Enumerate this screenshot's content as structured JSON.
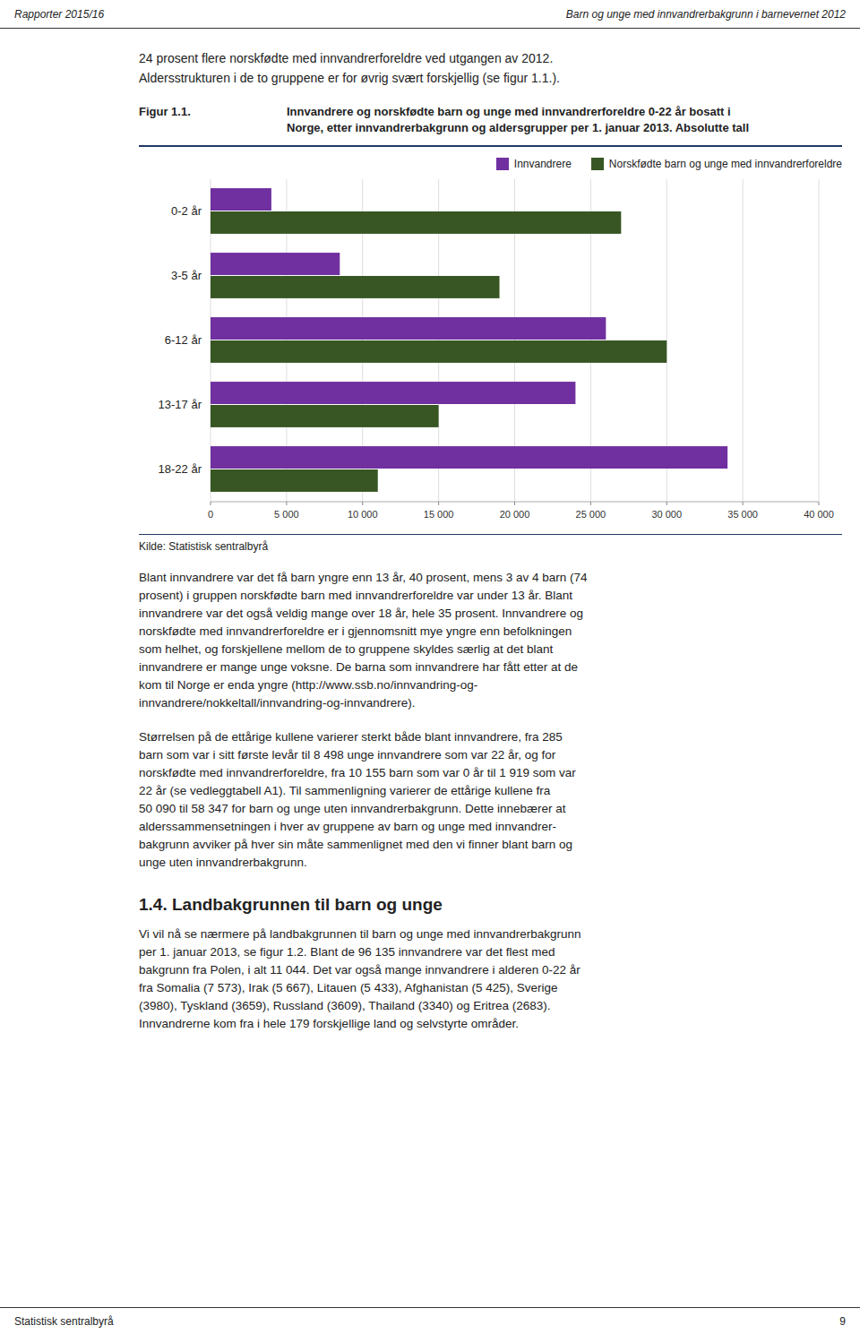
{
  "header_left": "Rapporter 2015/16",
  "header_right": "Barn og unge med innvandrerbakgrunn i barnevernet 2012",
  "footer_left": "Statistisk sentralbyrå",
  "footer_right": "9",
  "intro": [
    "24 prosent flere norskfødte med innvandrerforeldre ved utgangen av 2012.",
    "Aldersstrukturen i de to gruppene er for øvrig svært forskjellig (se figur 1.1.)."
  ],
  "body": [
    [
      "Blant innvandrere var det få barn yngre enn 13 år, 40 prosent, mens 3 av 4 barn (74",
      "prosent) i gruppen norskfødte barn med innvandrerforeldre var under 13 år. Blant",
      "innvandrere var det også veldig mange over 18 år, hele 35 prosent. Innvandrere og",
      "norskfødte med innvandrerforeldre er i gjennomsnitt mye yngre enn befolkningen",
      "som helhet, og forskjellene mellom de to gruppene skyldes særlig at det blant",
      "innvandrere er mange unge voksne. De barna som innvandrere har fått etter at de",
      "kom til Norge er enda yngre (http://www.ssb.no/innvandring-og-",
      "innvandrere/nokkeltall/innvandring-og-innvandrere)."
    ],
    [
      "Størrelsen på de ettårige kullene varierer sterkt både blant innvandrere, fra 285",
      "barn som var i sitt første levår til 8 498 unge innvandrere som var 22 år, og for",
      "norskfødte med innvandrerforeldre, fra 10 155 barn som var 0 år til 1 919 som var",
      "22 år (se vedleggtabell A1). Til sammenligning varierer de ettårige kullene fra",
      "50 090 til 58 347 for barn og unge uten innvandrerbakgrunn. Dette innebærer at",
      "alderssammensetningen i hver av gruppene av barn og unge med innvandrer-",
      "bakgrunn avviker på hver sin måte sammenlignet med den vi finner blant barn og",
      "unge uten innvandrerbakgrunn."
    ]
  ],
  "section_header": "1.4.  Landbakgrunnen til barn og unge",
  "section_body": [
    "Vi vil nå se nærmere på landbakgrunnen til barn og unge med innvandrerbakgrunn",
    "per 1. januar 2013, se figur 1.2. Blant de 96 135 innvandrere var det flest med",
    "bakgrunn fra Polen, i alt 11 044. Det var også mange innvandrere i alderen 0-22 år",
    "fra Somalia (7 573), Irak (5 667), Litauen (5 433), Afghanistan (5 425), Sverige",
    "(3980), Tyskland (3659), Russland (3609), Thailand (3340) og Eritrea (2683).",
    "Innvandrerne kom fra i hele 179 forskjellige land og selvstyrte områder."
  ],
  "chart_data": {
    "type": "bar",
    "orientation": "horizontal",
    "label": "Figur 1.1.",
    "title": [
      "Innvandrere og norskfødte barn og unge med innvandrerforeldre 0-22 år bosatt i",
      "Norge, etter innvandrerbakgrunn og aldersgrupper per 1. januar 2013. Absolutte tall"
    ],
    "categories": [
      "0-2 år",
      "3-5 år",
      "6-12 år",
      "13-17 år",
      "18-22 år"
    ],
    "series": [
      {
        "name": "Innvandrere",
        "color": "#7030a0",
        "values": [
          4000,
          8500,
          26000,
          24000,
          34000
        ]
      },
      {
        "name": "Norskfødte barn og unge med innvandrerforeldre",
        "color": "#375623",
        "values": [
          27000,
          19000,
          30000,
          15000,
          11000
        ]
      }
    ],
    "xlim": [
      0,
      40000
    ],
    "xticks": [
      0,
      {
        "value": 5000,
        "label": "5 000"
      },
      {
        "value": 10000,
        "label": "10 000"
      },
      {
        "value": 15000,
        "label": "15 000"
      },
      {
        "value": 20000,
        "label": "20 000"
      },
      {
        "value": 25000,
        "label": "25 000"
      },
      {
        "value": 30000,
        "label": "30 000"
      },
      {
        "value": 35000,
        "label": "35 000"
      },
      {
        "value": 40000,
        "label": "40 000"
      }
    ],
    "grid": true,
    "legend": "upper right",
    "source": "Kilde: Statistisk sentralbyrå"
  }
}
